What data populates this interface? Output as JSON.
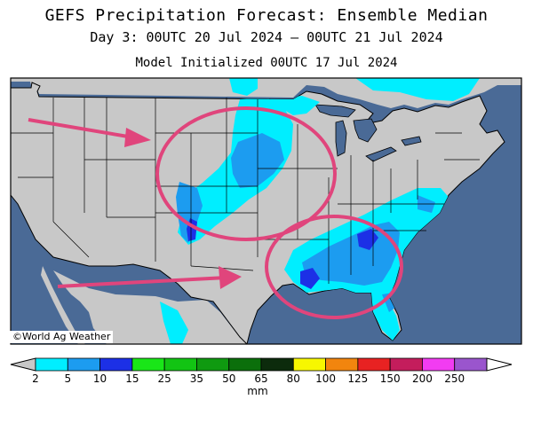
{
  "header": {
    "title": "GEFS Precipitation Forecast: Ensemble Median",
    "subtitle": "Day 3: 00UTC 20 Jul 2024 — 00UTC 21 Jul 2024",
    "initialized": "Model Initialized 00UTC 17 Jul 2024"
  },
  "map": {
    "credit": "©World Ag Weather",
    "colors": {
      "ocean": "#4a6a96",
      "land": "#c8c8c8",
      "borders": "#000000",
      "annotation": "#e0457c"
    },
    "annotations": [
      {
        "type": "arrow",
        "target": "northern-plains"
      },
      {
        "type": "arrow",
        "target": "texas-gulf-coast"
      },
      {
        "type": "ellipse",
        "region": "central-plains"
      },
      {
        "type": "ellipse",
        "region": "southeast-gulf-coast"
      }
    ]
  },
  "legend": {
    "unit": "mm",
    "ticks": [
      "2",
      "5",
      "10",
      "15",
      "25",
      "35",
      "50",
      "65",
      "80",
      "100",
      "125",
      "150",
      "200",
      "250"
    ],
    "colors": [
      "#00eeff",
      "#1c9cf0",
      "#1c30e6",
      "#19e618",
      "#12c413",
      "#0f9a10",
      "#0b6f0b",
      "#0c2b0c",
      "#f7f700",
      "#f2850e",
      "#e82222",
      "#c41d5c",
      "#f23cf2",
      "#9a55cd"
    ],
    "under_color": "#c8c8c8",
    "over_color": "#ffffff"
  }
}
